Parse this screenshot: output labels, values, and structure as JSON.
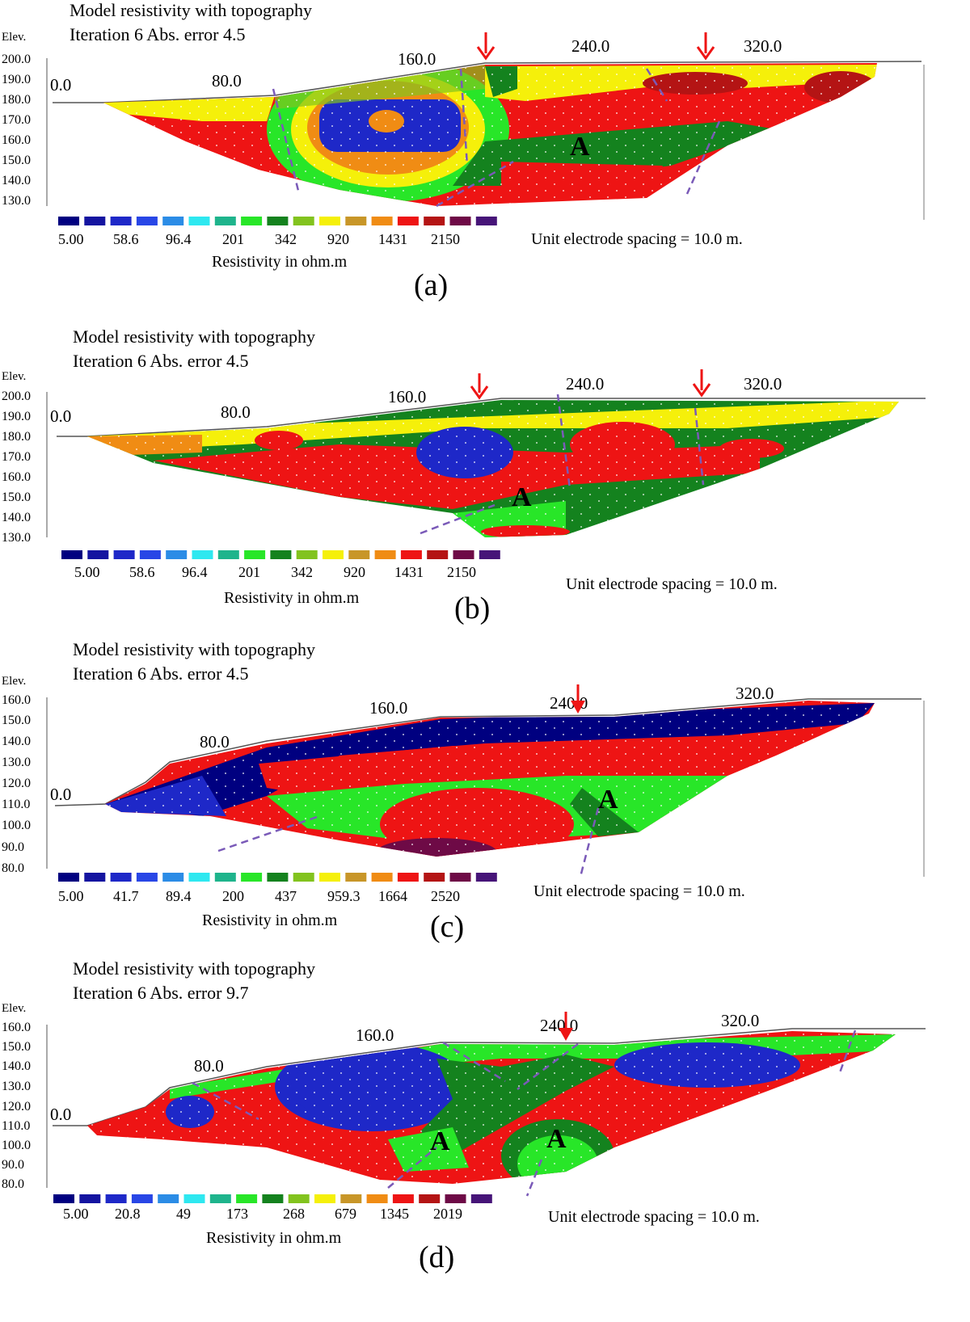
{
  "colors": {
    "legend": [
      "#000080",
      "#1414a0",
      "#1e28c8",
      "#2846e6",
      "#2b8ce6",
      "#2ee8f0",
      "#1eb48c",
      "#28e628",
      "#14821e",
      "#82c31e",
      "#f5f00a",
      "#c89628",
      "#f08c14",
      "#ee1414",
      "#b41414",
      "#6e0a46",
      "#461478"
    ],
    "fault": "#7a5ab8",
    "arrow": "#ee1414"
  },
  "panels": [
    {
      "id": "a",
      "caption": "(a)",
      "title_line1": "Model resistivity with topography",
      "title_line2": "Iteration 6  Abs. error 4.5",
      "elev_label": "Elev.",
      "y_ticks": [
        "200.0",
        "190.0",
        "180.0",
        "170.0",
        "160.0",
        "150.0",
        "140.0",
        "130.0"
      ],
      "x_ticks": [
        "0.0",
        "80.0",
        "160.0",
        "240.0",
        "320.0"
      ],
      "legend_values": [
        "5.00",
        "58.6",
        "96.4",
        "201",
        "342",
        "920",
        "1431",
        "2150"
      ],
      "legend_title": "Resistivity in ohm.m",
      "spacing_text": "Unit electrode spacing = 10.0 m.",
      "annotations": [
        "A"
      ]
    },
    {
      "id": "b",
      "caption": "(b)",
      "title_line1": "Model resistivity with topography",
      "title_line2": "Iteration 6  Abs. error 4.5",
      "elev_label": "Elev.",
      "y_ticks": [
        "200.0",
        "190.0",
        "180.0",
        "170.0",
        "160.0",
        "150.0",
        "140.0",
        "130.0"
      ],
      "x_ticks": [
        "0.0",
        "80.0",
        "160.0",
        "240.0",
        "320.0"
      ],
      "legend_values": [
        "5.00",
        "58.6",
        "96.4",
        "201",
        "342",
        "920",
        "1431",
        "2150"
      ],
      "legend_title": "Resistivity in ohm.m",
      "spacing_text": "Unit electrode spacing = 10.0 m.",
      "annotations": [
        "A"
      ]
    },
    {
      "id": "c",
      "caption": "(c)",
      "title_line1": "Model resistivity with topography",
      "title_line2": "Iteration 6  Abs. error 4.5",
      "elev_label": "Elev.",
      "y_ticks": [
        "160.0",
        "150.0",
        "140.0",
        "130.0",
        "120.0",
        "110.0",
        "100.0",
        "90.0",
        "80.0"
      ],
      "x_ticks": [
        "0.0",
        "80.0",
        "160.0",
        "240.0",
        "320.0"
      ],
      "legend_values": [
        "5.00",
        "41.7",
        "89.4",
        "200",
        "437",
        "959.3",
        "1664",
        "2520"
      ],
      "legend_title": "Resistivity in ohm.m",
      "spacing_text": "Unit electrode spacing = 10.0 m.",
      "annotations": [
        "A"
      ]
    },
    {
      "id": "d",
      "caption": "(d)",
      "title_line1": "Model resistivity with topography",
      "title_line2": "Iteration 6  Abs. error 9.7",
      "elev_label": "Elev.",
      "y_ticks": [
        "160.0",
        "150.0",
        "140.0",
        "130.0",
        "120.0",
        "110.0",
        "100.0",
        "90.0",
        "80.0"
      ],
      "x_ticks": [
        "0.0",
        "80.0",
        "160.0",
        "240.0",
        "320.0"
      ],
      "legend_values": [
        "5.00",
        "20.8",
        "49",
        "173",
        "268",
        "679",
        "1345",
        "2019"
      ],
      "legend_title": "Resistivity in ohm.m",
      "spacing_text": "Unit electrode spacing = 10.0 m.",
      "annotations": [
        "A",
        "A"
      ]
    }
  ],
  "chart_data": [
    {
      "type": "heatmap",
      "panel": "a",
      "title": "Model resistivity with topography",
      "subtitle": "Iteration 6  Abs. error 4.5",
      "ylabel": "Elev.",
      "ylim": [
        125,
        200
      ],
      "xlim": [
        0,
        360
      ],
      "y_ticks": [
        200,
        190,
        180,
        170,
        160,
        150,
        140,
        130
      ],
      "x_ticks": [
        0,
        80,
        160,
        240,
        320
      ],
      "colorbar_values": [
        5.0,
        58.6,
        96.4,
        201,
        342,
        920,
        1431,
        2150
      ],
      "colorbar_label": "Resistivity in ohm.m",
      "unit_electrode_spacing_m": 10.0,
      "markers": [
        {
          "type": "arrow",
          "x": 195
        },
        {
          "type": "arrow",
          "x": 295
        }
      ]
    },
    {
      "type": "heatmap",
      "panel": "b",
      "title": "Model resistivity with topography",
      "subtitle": "Iteration 6  Abs. error 4.5",
      "ylabel": "Elev.",
      "ylim": [
        125,
        200
      ],
      "xlim": [
        0,
        370
      ],
      "y_ticks": [
        200,
        190,
        180,
        170,
        160,
        150,
        140,
        130
      ],
      "x_ticks": [
        0,
        80,
        160,
        240,
        320
      ],
      "colorbar_values": [
        5.0,
        58.6,
        96.4,
        201,
        342,
        920,
        1431,
        2150
      ],
      "colorbar_label": "Resistivity in ohm.m",
      "unit_electrode_spacing_m": 10.0,
      "markers": [
        {
          "type": "arrow",
          "x": 195
        },
        {
          "type": "arrow",
          "x": 295
        }
      ]
    },
    {
      "type": "heatmap",
      "panel": "c",
      "title": "Model resistivity with topography",
      "subtitle": "Iteration 6  Abs. error 4.5",
      "ylabel": "Elev.",
      "ylim": [
        80,
        160
      ],
      "xlim": [
        0,
        370
      ],
      "y_ticks": [
        160,
        150,
        140,
        130,
        120,
        110,
        100,
        90,
        80
      ],
      "x_ticks": [
        0,
        80,
        160,
        240,
        320
      ],
      "colorbar_values": [
        5.0,
        41.7,
        89.4,
        200,
        437,
        959.3,
        1664,
        2520
      ],
      "colorbar_label": "Resistivity in ohm.m",
      "unit_electrode_spacing_m": 10.0,
      "markers": [
        {
          "type": "arrow",
          "x": 242
        }
      ]
    },
    {
      "type": "heatmap",
      "panel": "d",
      "title": "Model resistivity with topography",
      "subtitle": "Iteration 6  Abs. error 9.7",
      "ylabel": "Elev.",
      "ylim": [
        80,
        160
      ],
      "xlim": [
        0,
        370
      ],
      "y_ticks": [
        160,
        150,
        140,
        130,
        120,
        110,
        100,
        90,
        80
      ],
      "x_ticks": [
        0,
        80,
        160,
        240,
        320
      ],
      "colorbar_values": [
        5.0,
        20.8,
        49,
        173,
        268,
        679,
        1345,
        2019
      ],
      "colorbar_label": "Resistivity in ohm.m",
      "unit_electrode_spacing_m": 10.0,
      "markers": [
        {
          "type": "arrow",
          "x": 242
        }
      ]
    }
  ]
}
